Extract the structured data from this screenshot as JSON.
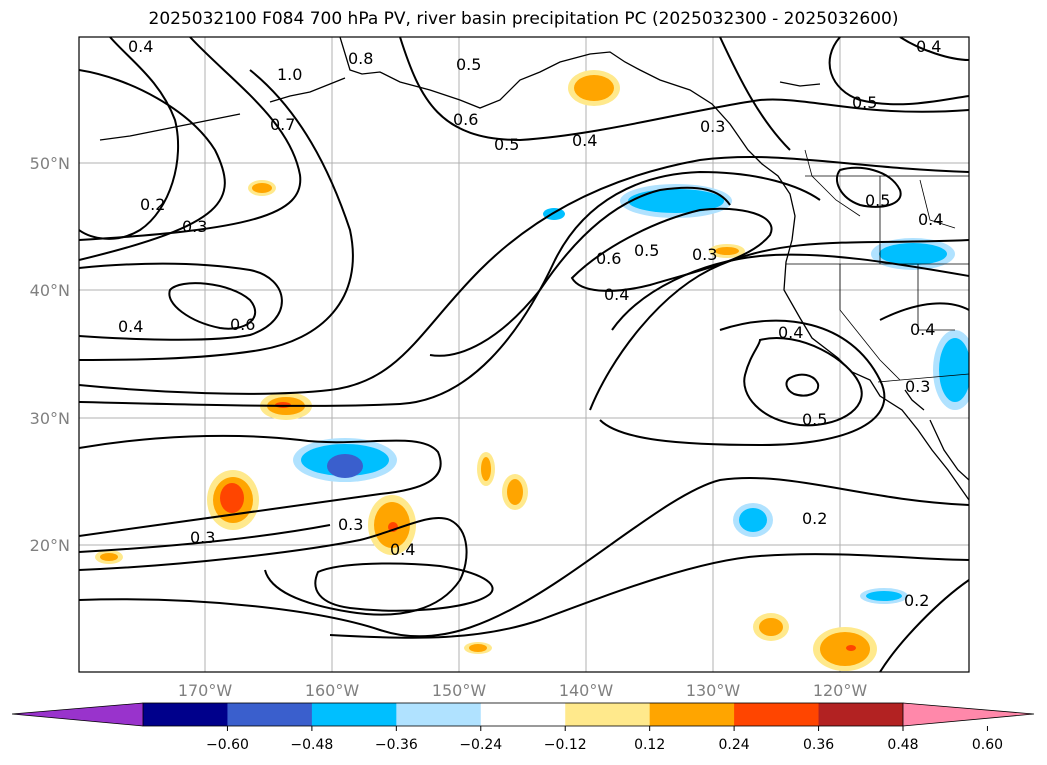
{
  "title": "2025032100 F084 700 hPa PV, river basin precipitation PC (2025032300 - 2025032600)",
  "map": {
    "lon_range": [
      -180,
      -110
    ],
    "lat_range": [
      10,
      60
    ],
    "lat_labels": [
      "50°N",
      "40°N",
      "30°N",
      "20°N"
    ],
    "lon_labels": [
      "170°W",
      "160°W",
      "150°W",
      "140°W",
      "130°W",
      "120°W"
    ],
    "contour_labels": [
      "0.4",
      "1.0",
      "0.7",
      "0.8",
      "0.5",
      "0.6",
      "0.5",
      "0.4",
      "0.3",
      "0.4",
      "0.2",
      "0.3",
      "0.6",
      "0.4",
      "0.6",
      "0.5",
      "0.4",
      "0.3",
      "0.5",
      "0.5",
      "0.4",
      "0.4",
      "0.4",
      "0.3",
      "0.5",
      "0.3",
      "0.3",
      "0.4",
      "0.2",
      "0.2"
    ]
  },
  "colorbar": {
    "ticks": [
      "−0.60",
      "−0.48",
      "−0.36",
      "−0.24",
      "−0.12",
      "0.12",
      "0.24",
      "0.36",
      "0.48",
      "0.60"
    ],
    "colors": [
      "#9933cc",
      "#00008b",
      "#3a5fcd",
      "#00bfff",
      "#b0e2ff",
      "#ffffff",
      "#ffe98c",
      "#ffa500",
      "#ff4500",
      "#b22222",
      "#ff88aa"
    ]
  }
}
